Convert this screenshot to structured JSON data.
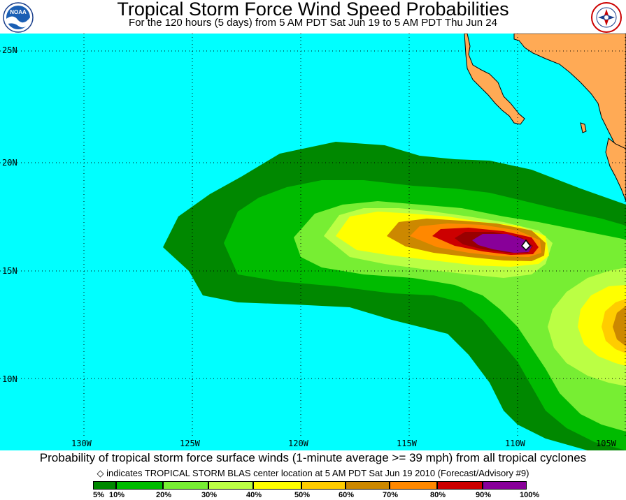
{
  "title": "Tropical Storm Force Wind Speed Probabilities",
  "subtitle": "For the 120 hours (5 days) from 5 AM PDT Sat Jun 19 to 5 AM PDT Thu Jun 24",
  "logos": {
    "left": {
      "icon": "noaa-logo",
      "text": "NOAA"
    },
    "right": {
      "icon": "nws-logo",
      "text": "NATIONAL WEATHER SERVICE"
    }
  },
  "map": {
    "lat_labels": [
      "25N",
      "20N",
      "15N",
      "10N"
    ],
    "lon_labels": [
      "130W",
      "125W",
      "120W",
      "115W",
      "110W",
      "105W"
    ],
    "ocean_color": "#00ffff",
    "land_color": "#ffaa55",
    "storm": {
      "name": "TROPICAL STORM BLAS",
      "marker": "diamond",
      "lat": 16.2,
      "lon": 108.8
    }
  },
  "footer": {
    "main": "Probability of tropical storm force surface winds (1-minute average >= 39 mph) from all tropical cyclones",
    "note_icon": "◇",
    "note": "indicates TROPICAL STORM BLAS center location at 5 AM PDT Sat Jun 19 2010 (Forecast/Advisory #9)"
  },
  "legend": {
    "colors": [
      "#008800",
      "#00bb00",
      "#77ee33",
      "#bbff44",
      "#ffff00",
      "#ffcc00",
      "#cc8800",
      "#ff8800",
      "#cc0000",
      "#990000",
      "#880099"
    ],
    "labels": [
      "5%",
      "10%",
      "20%",
      "30%",
      "40%",
      "50%",
      "60%",
      "70%",
      "80%",
      "90%",
      "100%"
    ]
  }
}
